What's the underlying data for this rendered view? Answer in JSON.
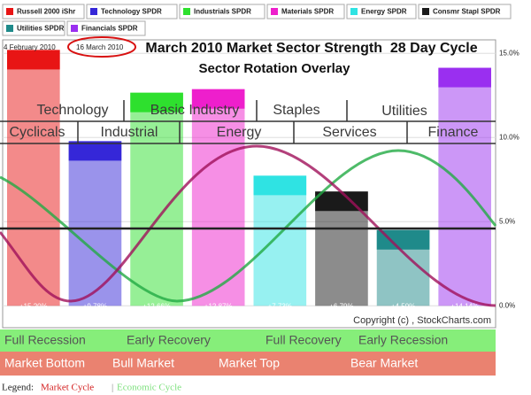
{
  "header": {
    "start_date": "4 February 2010",
    "end_date": "16 March 2010",
    "title": "March 2010 Market Sector Strength  28 Day Cycle",
    "subtitle": "Sector Rotation Overlay"
  },
  "chart_data": {
    "type": "bar",
    "categories": [
      "Russell 2000 iShr",
      "Technology SPDR",
      "Industrials SPDR",
      "Materials SPDR",
      "Energy SPDR",
      "Consmr Stapl SPDR",
      "Utilities SPDR",
      "Financials SPDR"
    ],
    "values": [
      15.2,
      9.78,
      12.66,
      12.87,
      7.73,
      6.79,
      4.5,
      14.14
    ],
    "value_labels": [
      "+15.20%",
      "+9.78%",
      "+12.66%",
      "+12.87%",
      "+7.73%",
      "+6.79%",
      "+4.50%",
      "+14.14%"
    ],
    "colors": [
      "#e81515",
      "#3527d8",
      "#2ee02e",
      "#ee1fcc",
      "#2fe3e3",
      "#1a1a1a",
      "#1f8a8a",
      "#9a2ff0"
    ],
    "ylim": [
      -1.3,
      15.8
    ],
    "yticks": [
      {
        "value": 0,
        "label": "0.0%"
      },
      {
        "value": 5,
        "label": "5.0%"
      },
      {
        "value": 10,
        "label": "10.0%"
      },
      {
        "value": 15,
        "label": "15.0%"
      }
    ],
    "grid": true
  },
  "overlay": {
    "sectors_top": [
      "Technology",
      "Basic Industry",
      "Staples",
      "Utilities"
    ],
    "sectors_bottom": [
      "Cyclicals",
      "Industrial",
      "Energy",
      "Services",
      "Finance"
    ],
    "economic_cycle": [
      "Full Recession",
      "Early Recovery",
      "Full Recovery",
      "Early Recession"
    ],
    "market_cycle": [
      "Market Bottom",
      "Bull Market",
      "Market Top",
      "Bear Market"
    ],
    "copyright": "Copyright (c) , StockCharts.com",
    "legend_label": "Legend:",
    "market_cycle_label": "Market Cycle",
    "separator": "|",
    "economic_cycle_label": "Economic Cycle"
  }
}
